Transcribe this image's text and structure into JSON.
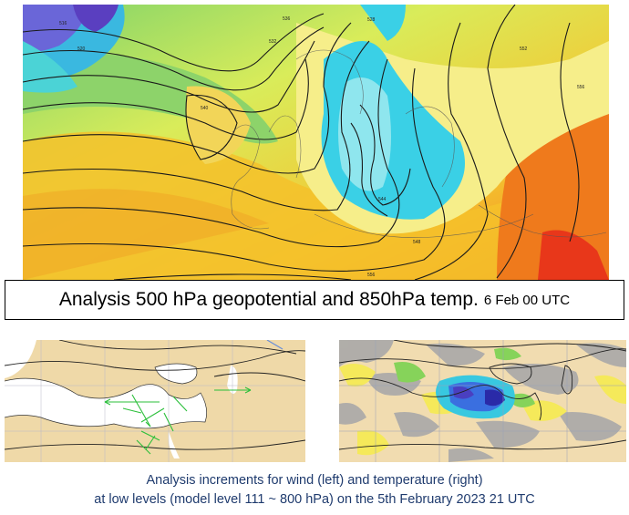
{
  "title": {
    "main": "Analysis 500 hPa geopotential and 850hPa temp.",
    "date": "6 Feb 00 UTC"
  },
  "caption": {
    "line1": "Analysis increments for wind (left) and temperature (right)",
    "line2": "at low levels (model level 111 ~ 800 hPa) on the 5th February 2023 21 UTC"
  },
  "contour_labels": [
    "516",
    "520",
    "528",
    "532",
    "536",
    "540",
    "544",
    "548",
    "552",
    "556"
  ],
  "colors": {
    "cold": "#5a3fc0",
    "cool": "#20d0e0",
    "mild": "#7fd36a",
    "warm": "#f4d24a",
    "hot": "#f07a1a",
    "land": "#efd9a8",
    "sea": "#ffffff",
    "caption_text": "#1f3b6e"
  }
}
